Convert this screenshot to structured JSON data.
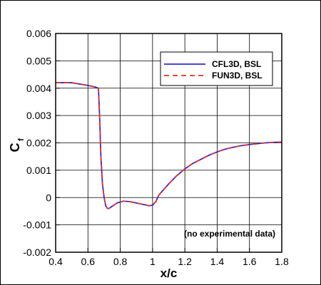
{
  "chart_data": {
    "type": "line",
    "xlabel": "x/c",
    "ylabel": "C",
    "ylabel_subscript": "f",
    "xlim": [
      0.4,
      1.8
    ],
    "ylim": [
      -0.002,
      0.006
    ],
    "xticks": [
      "0.4",
      "0.6",
      "0.8",
      "1",
      "1.2",
      "1.4",
      "1.6",
      "1.8"
    ],
    "yticks": [
      "-0.002",
      "-0.001",
      "0",
      "0.001",
      "0.002",
      "0.003",
      "0.004",
      "0.005",
      "0.006"
    ],
    "grid": true,
    "legend_position": "top-right",
    "annotation": "(no experimental data)",
    "series": [
      {
        "name": "CFL3D, BSL",
        "color": "#2b2bd6",
        "style": "solid",
        "x": [
          0.4,
          0.45,
          0.5,
          0.55,
          0.6,
          0.64,
          0.665,
          0.672,
          0.68,
          0.69,
          0.7,
          0.71,
          0.72,
          0.73,
          0.75,
          0.78,
          0.82,
          0.86,
          0.9,
          0.94,
          0.98,
          1.0,
          1.02,
          1.04,
          1.07,
          1.1,
          1.15,
          1.2,
          1.25,
          1.3,
          1.35,
          1.4,
          1.45,
          1.5,
          1.55,
          1.6,
          1.65,
          1.7,
          1.75,
          1.8
        ],
        "y": [
          0.0042,
          0.0042,
          0.0042,
          0.00415,
          0.0041,
          0.00405,
          0.004,
          0.003,
          0.0015,
          0.0005,
          0.0,
          -0.0003,
          -0.0004,
          -0.0004,
          -0.00032,
          -0.0002,
          -0.00013,
          -0.00015,
          -0.0002,
          -0.00025,
          -0.0003,
          -0.00028,
          -0.00015,
          0.0001,
          0.0003,
          0.0005,
          0.0008,
          0.00105,
          0.00125,
          0.0014,
          0.00155,
          0.00167,
          0.00177,
          0.00184,
          0.0019,
          0.00194,
          0.00197,
          0.002,
          0.00202,
          0.00203
        ]
      },
      {
        "name": "FUN3D, BSL",
        "color": "#e03030",
        "style": "dashed",
        "x": [
          0.4,
          0.45,
          0.5,
          0.55,
          0.6,
          0.64,
          0.665,
          0.672,
          0.68,
          0.69,
          0.7,
          0.71,
          0.72,
          0.73,
          0.75,
          0.78,
          0.82,
          0.86,
          0.9,
          0.94,
          0.98,
          1.0,
          1.02,
          1.04,
          1.07,
          1.1,
          1.15,
          1.2,
          1.25,
          1.3,
          1.35,
          1.4,
          1.45,
          1.5,
          1.55,
          1.6,
          1.65,
          1.7,
          1.75,
          1.8
        ],
        "y": [
          0.0042,
          0.0042,
          0.0042,
          0.00415,
          0.0041,
          0.00405,
          0.004,
          0.003,
          0.0015,
          0.0005,
          0.0,
          -0.0003,
          -0.0004,
          -0.0004,
          -0.00032,
          -0.0002,
          -0.00013,
          -0.00015,
          -0.0002,
          -0.00025,
          -0.0003,
          -0.00028,
          -0.00015,
          0.0001,
          0.0003,
          0.0005,
          0.0008,
          0.00105,
          0.00125,
          0.0014,
          0.00155,
          0.00167,
          0.00177,
          0.00184,
          0.0019,
          0.00194,
          0.00197,
          0.002,
          0.00202,
          0.00203
        ]
      }
    ]
  }
}
